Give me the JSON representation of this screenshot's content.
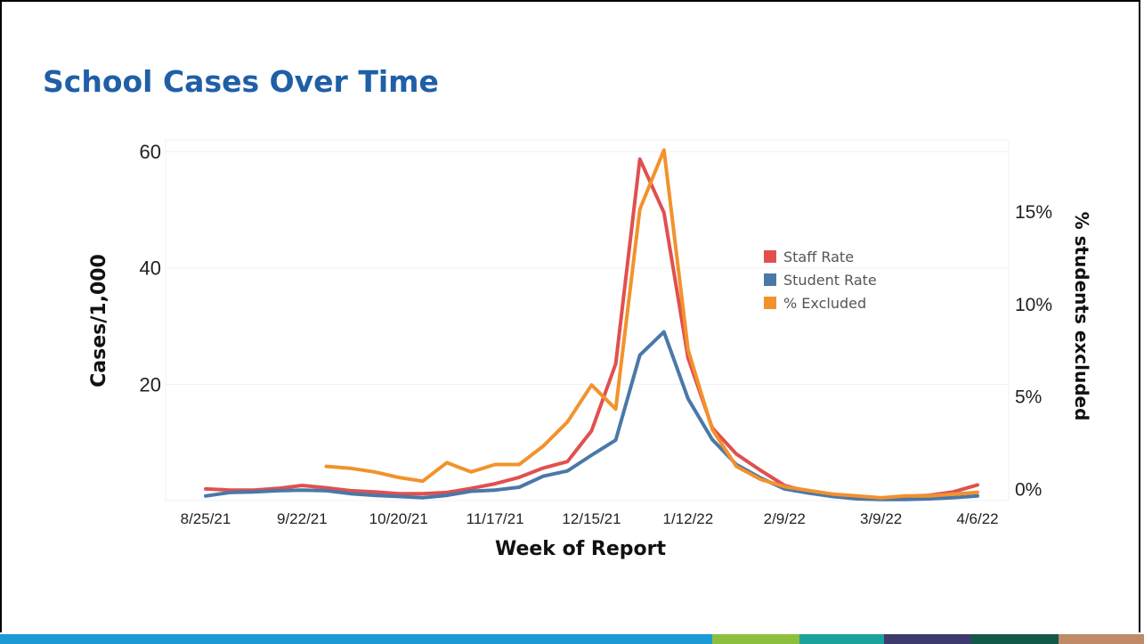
{
  "slide": {
    "title": "School Cases Over Time"
  },
  "colors": {
    "title": "#1f5fa6",
    "staff": "#e0504f",
    "student": "#4a78a8",
    "excluded": "#f2922d",
    "bottom_bar": [
      "#1b9ad6",
      "#8dbf3f",
      "#1ba39b",
      "#3d3a6e",
      "#12594a",
      "#c08a68"
    ]
  },
  "chart_data": {
    "type": "line",
    "xlabel": "Week of Report",
    "ylabel": "Cases/1,000",
    "y2label": "% students excluded",
    "ylim": [
      0,
      62
    ],
    "y2lim": [
      -0.65,
      18.85
    ],
    "yticks": [
      20,
      40,
      60
    ],
    "y2ticks": [
      0,
      5,
      10,
      15
    ],
    "y2tick_labels": [
      "0%",
      "5%",
      "10%",
      "15%"
    ],
    "x_tick_labels": [
      "8/25/21",
      "9/22/21",
      "10/20/21",
      "11/17/21",
      "12/15/21",
      "1/12/22",
      "2/9/22",
      "3/9/22",
      "4/6/22"
    ],
    "x_tick_index": [
      0,
      4,
      8,
      12,
      16,
      20,
      24,
      28,
      32
    ],
    "grid": true,
    "legend_position": "center-right",
    "series": [
      {
        "name": "Staff Rate",
        "axis": "left",
        "color": "#e0504f",
        "values": [
          2.0,
          1.8,
          1.8,
          2.1,
          2.6,
          2.2,
          1.7,
          1.5,
          1.2,
          1.2,
          1.4,
          2.1,
          2.9,
          4.0,
          5.6,
          6.7,
          12.0,
          23.5,
          58.7,
          49.5,
          24.5,
          12.5,
          8.0,
          5.2,
          2.6,
          1.5,
          0.9,
          0.6,
          0.4,
          0.7,
          0.9,
          1.5,
          2.7
        ]
      },
      {
        "name": "Student Rate",
        "axis": "left",
        "color": "#4a78a8",
        "values": [
          0.8,
          1.4,
          1.5,
          1.7,
          1.8,
          1.7,
          1.2,
          0.9,
          0.7,
          0.5,
          0.9,
          1.6,
          1.8,
          2.3,
          4.2,
          5.1,
          7.8,
          10.4,
          25.0,
          29.0,
          17.5,
          10.5,
          6.2,
          3.9,
          2.0,
          1.3,
          0.7,
          0.3,
          0.2,
          0.2,
          0.3,
          0.5,
          0.8
        ]
      },
      {
        "name": "% Excluded",
        "axis": "right",
        "color": "#f2922d",
        "values": [
          null,
          null,
          null,
          null,
          null,
          1.2,
          1.1,
          0.9,
          0.6,
          0.4,
          1.4,
          0.9,
          1.3,
          1.3,
          2.3,
          3.6,
          5.6,
          4.3,
          15.1,
          18.3,
          7.5,
          3.2,
          1.2,
          0.5,
          0.1,
          -0.1,
          -0.3,
          -0.4,
          -0.5,
          -0.4,
          -0.4,
          -0.3,
          -0.2
        ]
      }
    ]
  }
}
